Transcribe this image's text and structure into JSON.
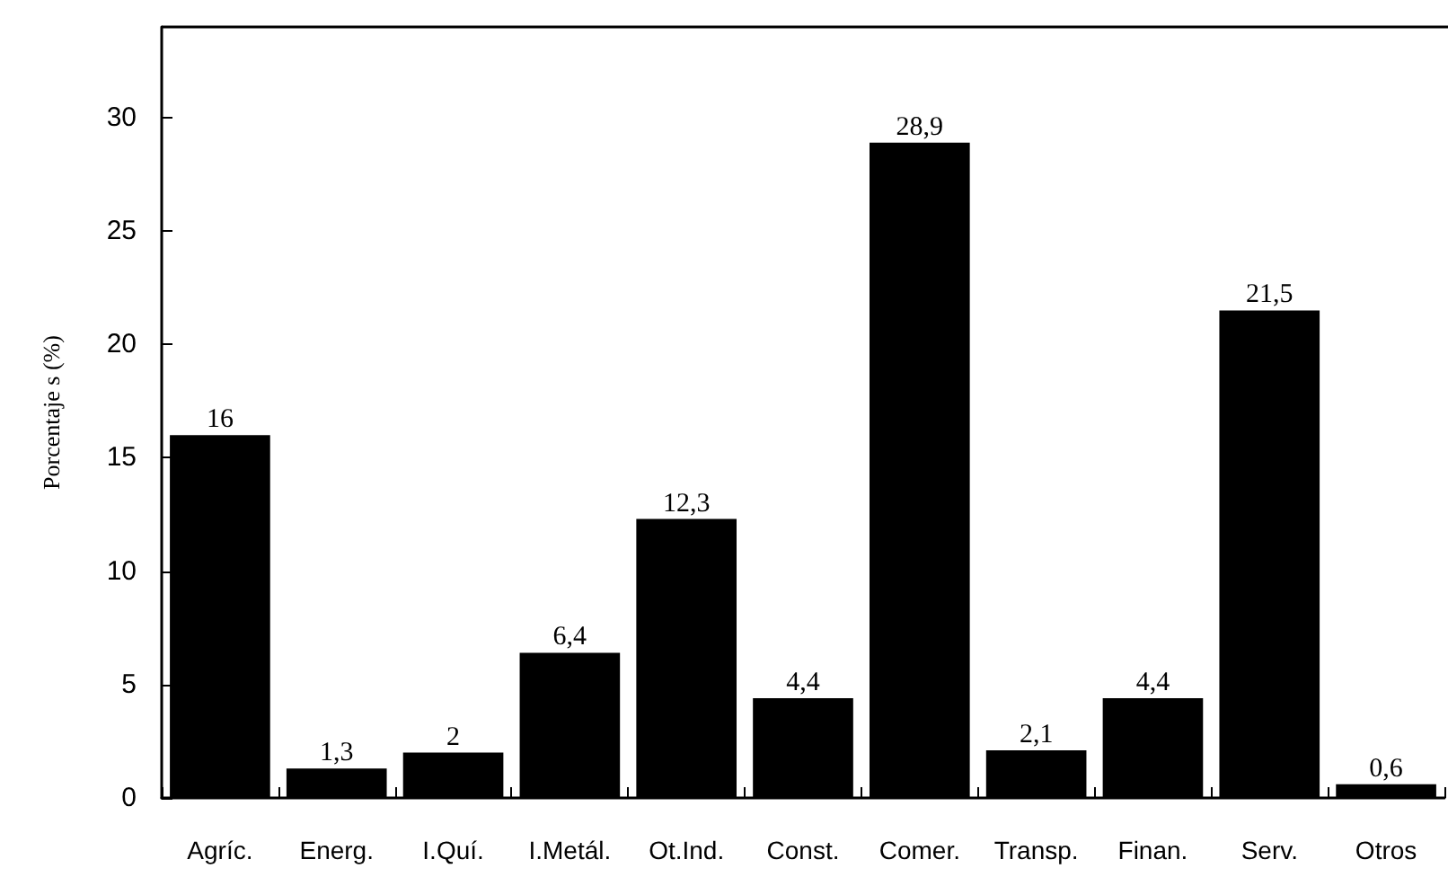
{
  "chart_data": {
    "type": "bar",
    "ylabel": "Porcentaje s (%)",
    "categories": [
      "Agríc.",
      "Energ.",
      "I.Quí.",
      "I.Metál.",
      "Ot.Ind.",
      "Const.",
      "Comer.",
      "Transp.",
      "Finan.",
      "Serv.",
      "Otros"
    ],
    "values": [
      16,
      1.3,
      2,
      6.4,
      12.3,
      4.4,
      28.9,
      2.1,
      4.4,
      21.5,
      0.6
    ],
    "value_labels": [
      "16",
      "1,3",
      "2",
      "6,4",
      "12,3",
      "4,4",
      "28,9",
      "2,1",
      "4,4",
      "21,5",
      "0,6"
    ],
    "color": "#000000",
    "ylim": [
      0,
      34
    ],
    "yticks": [
      0,
      5,
      10,
      15,
      20,
      25,
      30
    ],
    "grid": false
  }
}
